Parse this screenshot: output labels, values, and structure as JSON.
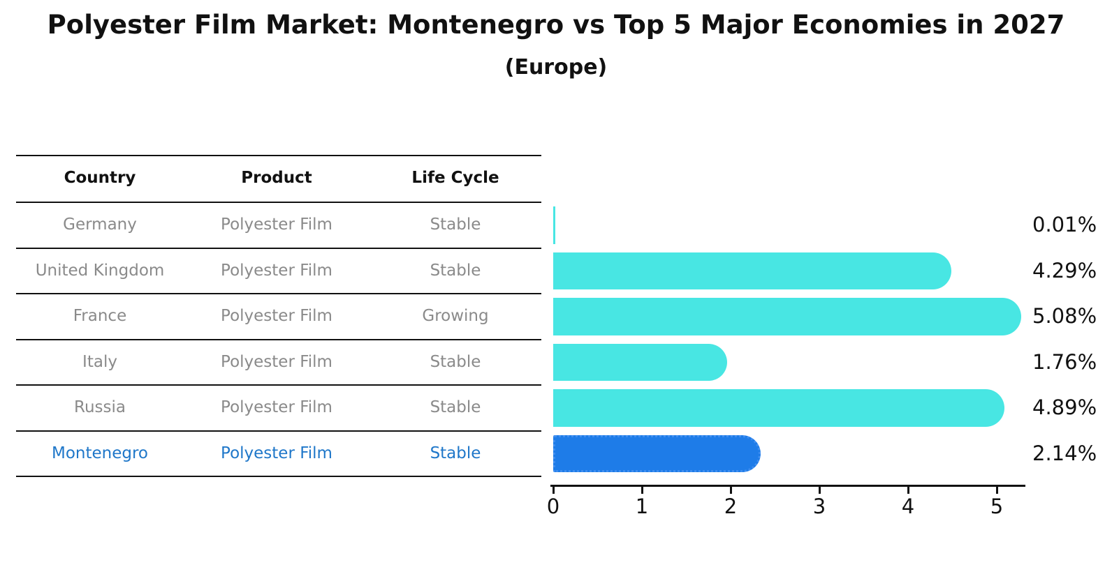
{
  "title": "Polyester Film Market: Montenegro vs Top 5 Major Economies in 2027",
  "subtitle": "(Europe)",
  "table": {
    "headers": [
      "Country",
      "Product",
      "Life Cycle"
    ],
    "rows": [
      {
        "country": "Germany",
        "product": "Polyester Film",
        "life_cycle": "Stable",
        "highlight": false
      },
      {
        "country": "United Kingdom",
        "product": "Polyester Film",
        "life_cycle": "Stable",
        "highlight": false
      },
      {
        "country": "France",
        "product": "Polyester Film",
        "life_cycle": "Growing",
        "highlight": false
      },
      {
        "country": "Italy",
        "product": "Polyester Film",
        "life_cycle": "Stable",
        "highlight": false
      },
      {
        "country": "Russia",
        "product": "Polyester Film",
        "life_cycle": "Stable",
        "highlight": false
      },
      {
        "country": "Montenegro",
        "product": "Polyester Film",
        "life_cycle": "Stable",
        "highlight": true
      }
    ]
  },
  "chart_data": {
    "type": "bar",
    "orientation": "horizontal",
    "title": "Polyester Film Market: Montenegro vs Top 5 Major Economies in 2027",
    "subtitle": "(Europe)",
    "categories": [
      "Germany",
      "United Kingdom",
      "France",
      "Italy",
      "Russia",
      "Montenegro"
    ],
    "values": [
      0.01,
      4.29,
      5.08,
      1.76,
      4.89,
      2.14
    ],
    "value_labels": [
      "0.01%",
      "4.29%",
      "5.08%",
      "1.76%",
      "4.89%",
      "2.14%"
    ],
    "x_ticks": [
      "0",
      "1",
      "2",
      "3",
      "4",
      "5"
    ],
    "xlim": [
      0,
      5.35
    ],
    "grid": false,
    "legend": "none",
    "bar_color": "#48e6e3",
    "highlight_color": "#1e7ce8",
    "highlight_index": 5,
    "highlight_text_color": "#1f77c9",
    "muted_text_color": "#8a8a8a"
  }
}
